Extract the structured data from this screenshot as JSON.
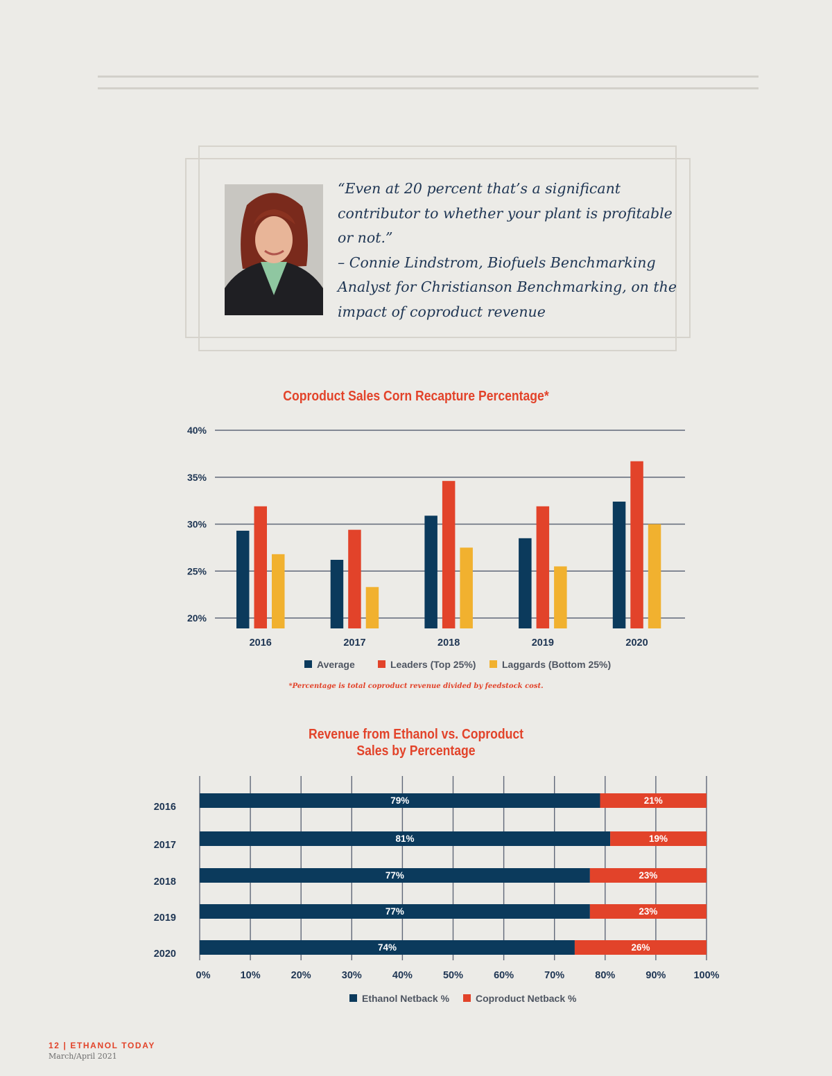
{
  "quote": {
    "lines": [
      "“Even at 20 percent that’s a significant",
      "contributor to whether your plant is profitable",
      "or not.”",
      "–  Connie Lindstrom, Biofuels Benchmarking",
      "Analyst for Christianson Benchmarking, on the",
      "impact of coproduct revenue"
    ]
  },
  "colors": {
    "navy": "#0b3a5c",
    "red": "#e2432a",
    "yellow": "#f1b12f",
    "axis_text": "#1e3553",
    "grid": "#5f6778"
  },
  "chart_data": [
    {
      "type": "bar",
      "title": "Coproduct Sales Corn Recapture Percentage*",
      "footnote": "*Percentage is total coproduct revenue divided by feedstock cost.",
      "categories": [
        "2016",
        "2017",
        "2018",
        "2019",
        "2020"
      ],
      "series": [
        {
          "name": "Average",
          "color": "#0b3a5c",
          "values": [
            29.3,
            26.2,
            30.9,
            28.5,
            32.4
          ]
        },
        {
          "name": "Leaders (Top 25%)",
          "color": "#e2432a",
          "values": [
            31.9,
            29.4,
            34.6,
            31.9,
            36.7
          ]
        },
        {
          "name": "Laggards (Bottom 25%)",
          "color": "#f1b12f",
          "values": [
            26.8,
            23.3,
            27.5,
            25.5,
            30.0
          ]
        }
      ],
      "ylim": [
        20,
        40
      ],
      "yticks": [
        "20%",
        "25%",
        "30%",
        "35%",
        "40%"
      ],
      "grid": true,
      "legend": "bottom"
    },
    {
      "type": "bar",
      "orientation": "horizontal",
      "stacked": true,
      "title": [
        "Revenue from Ethanol vs. Coproduct",
        "Sales by Percentage"
      ],
      "categories": [
        "2016",
        "2017",
        "2018",
        "2019",
        "2020"
      ],
      "series": [
        {
          "name": "Ethanol Netback %",
          "color": "#0b3a5c",
          "values": [
            79,
            81,
            77,
            77,
            74
          ],
          "labels": [
            "79%",
            "81%",
            "77%",
            "77%",
            "74%"
          ]
        },
        {
          "name": "Coproduct Netback %",
          "color": "#e2432a",
          "values": [
            21,
            19,
            23,
            23,
            26
          ],
          "labels": [
            "21%",
            "19%",
            "23%",
            "23%",
            "26%"
          ]
        }
      ],
      "xlim": [
        0,
        100
      ],
      "xticks": [
        "0%",
        "10%",
        "20%",
        "30%",
        "40%",
        "50%",
        "60%",
        "70%",
        "80%",
        "90%",
        "100%"
      ],
      "grid": true,
      "legend": "bottom"
    }
  ],
  "footer": {
    "brand": "12 | ETHANOL TODAY",
    "date": "March/April 2021"
  }
}
